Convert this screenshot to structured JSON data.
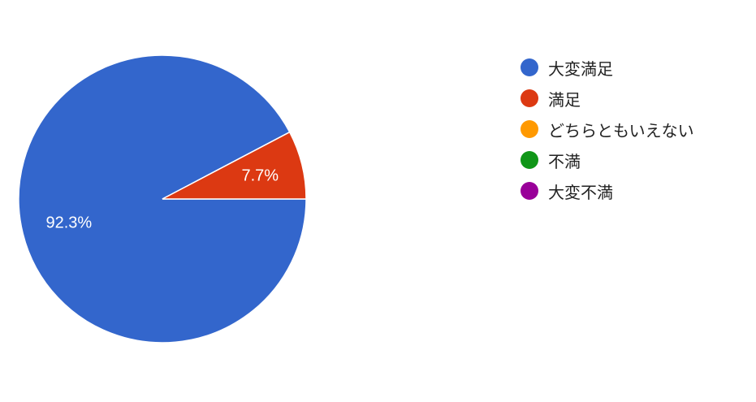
{
  "chart_data": {
    "type": "pie",
    "categories": [
      "大変満足",
      "満足",
      "どちらともいえない",
      "不満",
      "大変不満"
    ],
    "values": [
      92.3,
      7.7,
      0,
      0,
      0
    ],
    "labels": [
      "92.3%",
      "7.7%",
      "",
      "",
      ""
    ],
    "colors": [
      "#3366cc",
      "#dc3912",
      "#ff9900",
      "#109618",
      "#990099"
    ],
    "start_angle_deg": 90,
    "legend_position": "right"
  }
}
